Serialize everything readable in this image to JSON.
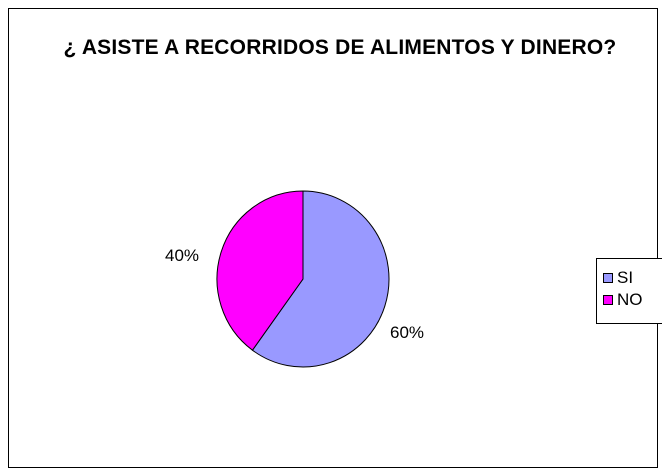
{
  "chart_data": {
    "type": "pie",
    "title": "¿ ASISTE A RECORRIDOS DE ALIMENTOS Y DINERO?",
    "categories": [
      "SI",
      "NO"
    ],
    "values": [
      60,
      40
    ],
    "data_labels": [
      "60%",
      "40%"
    ],
    "colors": [
      "#9999ff",
      "#ff00ff"
    ],
    "legend_position": "right"
  }
}
